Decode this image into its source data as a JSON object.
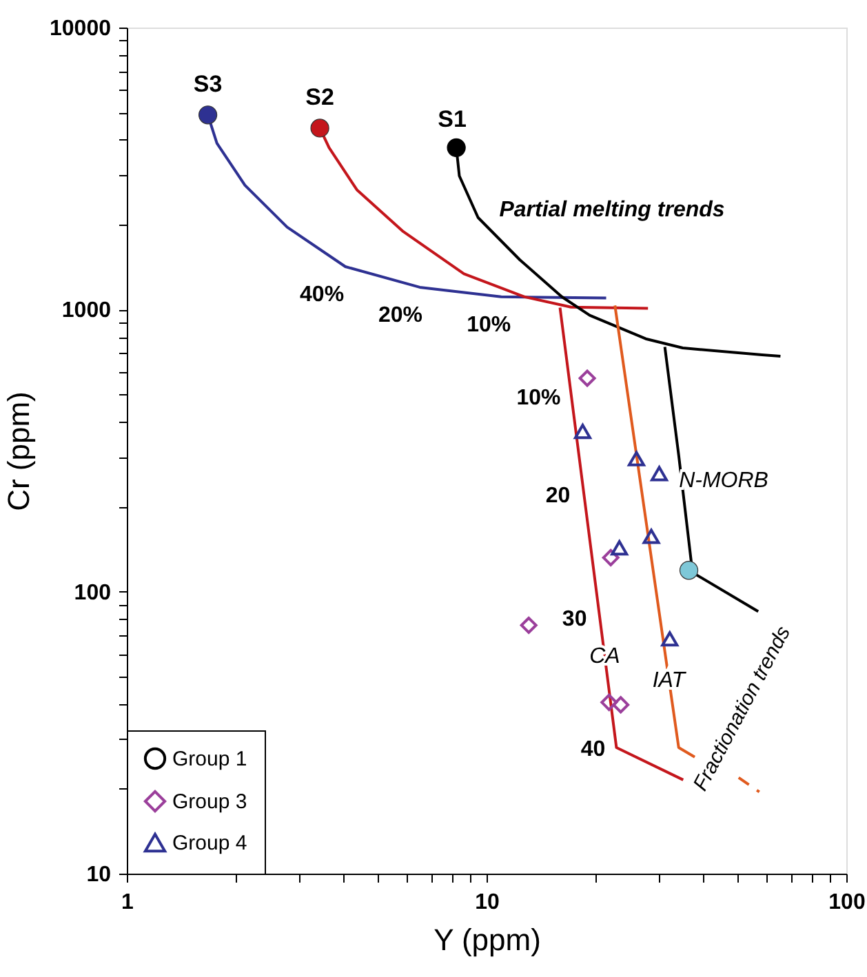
{
  "chart_data": {
    "type": "scatter",
    "xlabel": "Y (ppm)",
    "ylabel": "Cr (ppm)",
    "log": "xy",
    "xlim": [
      1,
      100
    ],
    "ylim": [
      10,
      10000
    ],
    "xticks": [
      1,
      {
        "value": 2,
        "label": null
      },
      {
        "value": 3,
        "label": null
      },
      {
        "value": 4,
        "label": null
      },
      {
        "value": 5,
        "label": null
      },
      {
        "value": 6,
        "label": null
      },
      {
        "value": 7,
        "label": null
      },
      {
        "value": 8,
        "label": null
      },
      {
        "value": 9,
        "label": null
      },
      10,
      {
        "value": 20,
        "label": null
      },
      {
        "value": 30,
        "label": null
      },
      {
        "value": 40,
        "label": null
      },
      {
        "value": 50,
        "label": null
      },
      {
        "value": 60,
        "label": null
      },
      {
        "value": 70,
        "label": null
      },
      {
        "value": 80,
        "label": null
      },
      {
        "value": 90,
        "label": null
      },
      100
    ],
    "yticks": [
      10,
      {
        "value": 20,
        "label": null
      },
      {
        "value": 30,
        "label": null
      },
      {
        "value": 40,
        "label": null
      },
      {
        "value": 50,
        "label": null
      },
      {
        "value": 60,
        "label": null
      },
      {
        "value": 70,
        "label": null
      },
      {
        "value": 80,
        "label": null
      },
      {
        "value": 90,
        "label": null
      },
      100,
      {
        "value": 200,
        "label": null
      },
      {
        "value": 300,
        "label": null
      },
      {
        "value": 400,
        "label": null
      },
      {
        "value": 500,
        "label": null
      },
      {
        "value": 600,
        "label": null
      },
      {
        "value": 700,
        "label": null
      },
      {
        "value": 800,
        "label": null
      },
      {
        "value": 900,
        "label": null
      },
      1000,
      {
        "value": 2000,
        "label": null
      },
      {
        "value": 3000,
        "label": null
      },
      {
        "value": 4000,
        "label": null
      },
      {
        "value": 5000,
        "label": null
      },
      {
        "value": 6000,
        "label": null
      },
      {
        "value": 7000,
        "label": null
      },
      {
        "value": 8000,
        "label": null
      },
      {
        "value": 9000,
        "label": null
      },
      10000
    ],
    "legend": "bottom left",
    "series": [
      {
        "type": "line",
        "color": "#2e3192",
        "line_style": "solid",
        "x": [
          1.68,
          1.78,
          2.13,
          2.79,
          4.05,
          6.52,
          10.98,
          21.5
        ],
        "values": [
          4900,
          3890,
          2760,
          1960,
          1420,
          1200,
          1110,
          1100
        ]
      },
      {
        "type": "line",
        "color": "#c4161c",
        "line_style": "solid",
        "x": [
          3.44,
          3.65,
          4.36,
          5.87,
          8.65,
          12.75,
          17.17,
          28.1
        ],
        "values": [
          4400,
          3750,
          2660,
          1890,
          1340,
          1110,
          1020,
          1010
        ]
      },
      {
        "type": "line",
        "color": "#000000",
        "line_style": "solid",
        "x": [
          8.24,
          8.4,
          9.47,
          12.38,
          16.19,
          19.35,
          27.7,
          35.1,
          58.3,
          65.6
        ],
        "values": [
          3750,
          2980,
          2120,
          1500,
          1110,
          954,
          788,
          731,
          691,
          683
        ]
      },
      {
        "type": "line",
        "color": "#c4161c",
        "line_style": "solid",
        "x": [
          16.0,
          22.96,
          35.2
        ],
        "values": [
          1016,
          28,
          21.5
        ]
      },
      {
        "type": "line",
        "color": "#e05a1e",
        "line_style": "solid",
        "x": [
          22.74,
          34.2,
          37.9
        ],
        "values": [
          1034,
          28,
          25.9
        ]
      },
      {
        "type": "line",
        "color": "#e05a1e",
        "line_style": "dashed",
        "x": [
          50.2,
          57.3
        ],
        "values": [
          21.9,
          19.5
        ]
      },
      {
        "type": "line",
        "color": "#000000",
        "line_style": "solid",
        "x": [
          31.3,
          34.2,
          37.3
        ],
        "values": [
          737,
          305,
          119
        ]
      },
      {
        "type": "line",
        "color": "#000000",
        "line_style": "solid",
        "x": [
          36.5,
          56.9
        ],
        "values": [
          119,
          85
        ]
      },
      {
        "color": "#2e3192",
        "marker": "circle",
        "x": [
          1.68
        ],
        "values": [
          4900
        ]
      },
      {
        "color": "#c4161c",
        "marker": "circle",
        "x": [
          3.44
        ],
        "values": [
          4400
        ]
      },
      {
        "color": "#000000",
        "marker": "circle",
        "x": [
          8.24
        ],
        "values": [
          3750
        ]
      },
      {
        "color": "#7ec8d8",
        "marker": "circle",
        "x": [
          36.5
        ],
        "values": [
          119
        ]
      },
      {
        "name": "Group 1",
        "color": "#000000",
        "marker": "circle"
      },
      {
        "name": "Group 3",
        "color": "#9b3f9b",
        "marker": "diamond",
        "x": [
          19.05,
          22.14,
          13.1,
          21.9,
          23.6
        ],
        "values": [
          571,
          132,
          76,
          40.5,
          39.7
        ]
      },
      {
        "name": "Group 4",
        "color": "#2e3192",
        "marker": "triangle",
        "x": [
          18.5,
          26.1,
          30.2,
          23.4,
          28.7,
          32.3
        ],
        "values": [
          370,
          296,
          262,
          143,
          157,
          68
        ]
      }
    ],
    "annotations": [
      {
        "text": "S3",
        "x": 1.68,
        "y": 4900
      },
      {
        "text": "S2",
        "x": 3.44,
        "y": 4400
      },
      {
        "text": "S1",
        "x": 8.24,
        "y": 3750
      },
      "Partial melting trends",
      {
        "text": "40%",
        "x": 4.05,
        "y": 1420
      },
      {
        "text": "20%",
        "x": 6.52,
        "y": 1200
      },
      {
        "text": "10%",
        "x": 10.98,
        "y": 1110
      },
      {
        "text": "10%",
        "x": 17.09,
        "y": 478
      },
      {
        "text": "20",
        "x": 18.66,
        "y": 205
      },
      {
        "text": "30",
        "x": 20.4,
        "y": 80
      },
      {
        "text": "40",
        "x": 22.96,
        "y": 28
      },
      {
        "text": "CA",
        "x": 21.3,
        "y": 59
      },
      {
        "text": "IAT",
        "x": 32.1,
        "y": 48.6
      },
      {
        "text": "N-MORB",
        "x": 34.7,
        "y": 248
      },
      "Fractionation trends"
    ]
  }
}
